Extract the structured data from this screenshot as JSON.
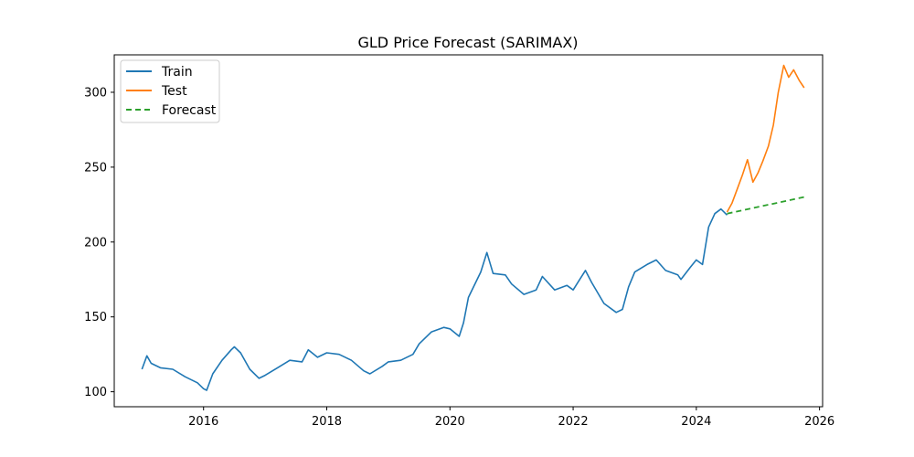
{
  "chart_data": {
    "type": "line",
    "title": "GLD Price Forecast (SARIMAX)",
    "xlabel": "",
    "ylabel": "",
    "x_ticks": [
      "2016",
      "2018",
      "2020",
      "2022",
      "2024",
      "2026"
    ],
    "y_ticks": [
      "100",
      "150",
      "200",
      "250",
      "300"
    ],
    "xlim": [
      2014.55,
      2026.05
    ],
    "ylim": [
      90,
      325
    ],
    "grid": false,
    "legend_position": "top-left",
    "series": [
      {
        "name": "Train",
        "color": "#1f77b4",
        "style": "solid",
        "x": [
          2015.0,
          2015.08,
          2015.15,
          2015.3,
          2015.5,
          2015.7,
          2015.9,
          2016.0,
          2016.05,
          2016.15,
          2016.3,
          2016.45,
          2016.5,
          2016.6,
          2016.75,
          2016.9,
          2017.0,
          2017.2,
          2017.4,
          2017.6,
          2017.7,
          2017.85,
          2018.0,
          2018.2,
          2018.4,
          2018.6,
          2018.7,
          2018.9,
          2019.0,
          2019.2,
          2019.4,
          2019.5,
          2019.7,
          2019.9,
          2020.0,
          2020.15,
          2020.22,
          2020.3,
          2020.5,
          2020.6,
          2020.7,
          2020.9,
          2021.0,
          2021.2,
          2021.4,
          2021.5,
          2021.7,
          2021.9,
          2022.0,
          2022.2,
          2022.3,
          2022.5,
          2022.7,
          2022.8,
          2022.9,
          2023.0,
          2023.2,
          2023.35,
          2023.5,
          2023.7,
          2023.75,
          2023.9,
          2024.0,
          2024.1,
          2024.2,
          2024.3,
          2024.4,
          2024.5
        ],
        "y": [
          115,
          124,
          119,
          116,
          115,
          110,
          106,
          102,
          101,
          112,
          121,
          128,
          130,
          126,
          115,
          109,
          111,
          116,
          121,
          120,
          128,
          123,
          126,
          125,
          121,
          114,
          112,
          117,
          120,
          121,
          125,
          132,
          140,
          143,
          142,
          137,
          146,
          163,
          180,
          193,
          179,
          178,
          172,
          165,
          168,
          177,
          168,
          171,
          168,
          181,
          173,
          159,
          153,
          155,
          170,
          180,
          185,
          188,
          181,
          178,
          175,
          183,
          188,
          185,
          210,
          219,
          222,
          218
        ]
      },
      {
        "name": "Test",
        "color": "#ff7f0e",
        "style": "solid",
        "x": [
          2024.5,
          2024.58,
          2024.67,
          2024.75,
          2024.83,
          2024.92,
          2025.0,
          2025.08,
          2025.17,
          2025.25,
          2025.33,
          2025.42,
          2025.5,
          2025.58,
          2025.67,
          2025.75
        ],
        "y": [
          220,
          226,
          236,
          245,
          255,
          240,
          246,
          254,
          264,
          278,
          300,
          318,
          310,
          315,
          308,
          303
        ]
      },
      {
        "name": "Forecast",
        "color": "#2ca02c",
        "style": "dashed",
        "x": [
          2024.5,
          2025.75
        ],
        "y": [
          219,
          230
        ]
      }
    ]
  }
}
